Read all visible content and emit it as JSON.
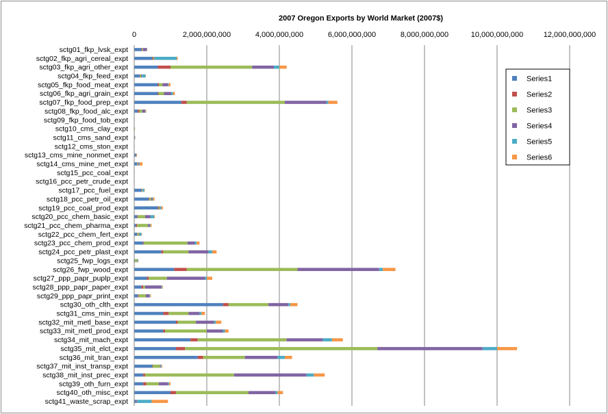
{
  "chart_data": {
    "type": "bar",
    "orientation": "horizontal",
    "stacked": true,
    "title": "2007 Oregon Exports by World Market (2007$)",
    "xlim": [
      0,
      12000000000
    ],
    "xticks": [
      0,
      2000000000,
      4000000000,
      6000000000,
      8000000000,
      10000000000,
      12000000000
    ],
    "xtick_labels": [
      "0",
      "2,000,000,000",
      "4,000,000,000",
      "6,000,000,000",
      "8,000,000,000",
      "10,000,000,000",
      "12,000,000,000"
    ],
    "grid": true,
    "legend_position": "right",
    "categories": [
      "sctg01_fkp_lvsk_expt",
      "sctg02_fkp_agri_cereal_expt",
      "sctg03_fkp_agri_other_expt",
      "sctg04_fkp_feed_expt",
      "sctg05_fkp_food_meat_expt",
      "sctg06_fkp_agri_grain_expt",
      "sctg07_fkp_food_prep_expt",
      "sctg08_fkp_food_alc_expt",
      "sctg09_fkp_food_tob_expt",
      "sctg10_cms_clay_expt",
      "sctg11_cms_sand_expt",
      "sctg12_cms_ston_expt",
      "sctg13_cms_mine_nonmet_expt",
      "sctg14_cms_mine_met_expt",
      "sctg15_pcc_coal_expt",
      "sctg16_pcc_petr_crude_expt",
      "sctg17_pcc_fuel_expt",
      "sctg18_pcc_petr_oil_expt",
      "sctg19_pcc_coal_prod_expt",
      "sctg20_pcc_chem_basic_expt",
      "sctg21_pcc_chem_pharma_expt",
      "sctg22_pcc_chem_fert_expt",
      "sctg23_pcc_chem_prod_expt",
      "sctg24_pcc_petr_plast_expt",
      "sctg25_fwp_logs_expt",
      "sctg26_fwp_wood_expt",
      "sctg27_ppp_papr_puplp_expt",
      "sctg28_ppp_papr_paper_expt",
      "sctg29_ppp_papr_print_expt",
      "sctg30_oth_clth_expt",
      "sctg31_cms_min_expt",
      "sctg32_mit_metl_base_expt",
      "sctg33_mit_metl_prod_expt",
      "sctg34_mit_mach_expt",
      "sctg35_mit_elct_expt",
      "sctg36_mit_tran_expt",
      "sctg37_mit_inst_transp_expt",
      "sctg38_mit_inst_prec_expt",
      "sctg39_oth_furn_expt",
      "sctg40_oth_misc_expt",
      "sctg41_waste_scrap_expt"
    ],
    "series": [
      {
        "name": "Series1",
        "color": "#4f81bd",
        "values": [
          200000000,
          500000000,
          650000000,
          150000000,
          650000000,
          650000000,
          1300000000,
          100000000,
          5000000,
          10000000,
          10000000,
          5000000,
          40000000,
          80000000,
          5000000,
          10000000,
          200000000,
          400000000,
          650000000,
          80000000,
          50000000,
          80000000,
          250000000,
          750000000,
          20000000,
          1100000000,
          350000000,
          200000000,
          100000000,
          2450000000,
          800000000,
          1150000000,
          800000000,
          1550000000,
          1150000000,
          1750000000,
          500000000,
          250000000,
          250000000,
          1000000000,
          50000000
        ]
      },
      {
        "name": "Series2",
        "color": "#c0504d",
        "values": [
          20000000,
          20000000,
          350000000,
          10000000,
          30000000,
          20000000,
          150000000,
          40000000,
          0,
          0,
          0,
          0,
          5000000,
          10000000,
          0,
          0,
          10000000,
          20000000,
          20000000,
          20000000,
          30000000,
          10000000,
          20000000,
          50000000,
          0,
          350000000,
          50000000,
          50000000,
          20000000,
          150000000,
          150000000,
          50000000,
          50000000,
          200000000,
          250000000,
          150000000,
          10000000,
          50000000,
          80000000,
          150000000,
          10000000
        ]
      },
      {
        "name": "Series3",
        "color": "#9bbb59",
        "values": [
          20000000,
          30000000,
          2250000000,
          30000000,
          100000000,
          150000000,
          2700000000,
          80000000,
          0,
          5000000,
          5000000,
          0,
          5000000,
          20000000,
          0,
          0,
          20000000,
          50000000,
          30000000,
          200000000,
          300000000,
          50000000,
          1200000000,
          700000000,
          60000000,
          3050000000,
          500000000,
          50000000,
          200000000,
          1100000000,
          550000000,
          500000000,
          1150000000,
          2450000000,
          5300000000,
          1150000000,
          200000000,
          2450000000,
          350000000,
          2000000000,
          0
        ]
      },
      {
        "name": "Series4",
        "color": "#8064a2",
        "values": [
          100000000,
          20000000,
          600000000,
          20000000,
          150000000,
          200000000,
          1150000000,
          80000000,
          0,
          0,
          5000000,
          0,
          10000000,
          20000000,
          0,
          0,
          10000000,
          30000000,
          20000000,
          150000000,
          50000000,
          10000000,
          200000000,
          550000000,
          5000000,
          2250000000,
          1050000000,
          450000000,
          100000000,
          550000000,
          300000000,
          500000000,
          450000000,
          1000000000,
          2900000000,
          900000000,
          20000000,
          2000000000,
          250000000,
          750000000,
          20000000
        ]
      },
      {
        "name": "Series5",
        "color": "#4bacc6",
        "values": [
          10000000,
          600000000,
          150000000,
          100000000,
          20000000,
          50000000,
          50000000,
          10000000,
          0,
          0,
          0,
          0,
          5000000,
          20000000,
          0,
          0,
          40000000,
          20000000,
          30000000,
          100000000,
          20000000,
          50000000,
          50000000,
          100000000,
          20000000,
          100000000,
          50000000,
          20000000,
          20000000,
          50000000,
          50000000,
          50000000,
          50000000,
          250000000,
          400000000,
          200000000,
          20000000,
          200000000,
          30000000,
          50000000,
          400000000
        ]
      },
      {
        "name": "Series6",
        "color": "#f79646",
        "values": [
          10000000,
          30000000,
          200000000,
          5000000,
          50000000,
          50000000,
          250000000,
          20000000,
          0,
          0,
          0,
          0,
          10000000,
          80000000,
          0,
          0,
          10000000,
          40000000,
          40000000,
          20000000,
          30000000,
          10000000,
          80000000,
          120000000,
          5000000,
          350000000,
          150000000,
          20000000,
          20000000,
          200000000,
          100000000,
          150000000,
          100000000,
          300000000,
          550000000,
          200000000,
          20000000,
          300000000,
          40000000,
          150000000,
          450000000
        ]
      }
    ]
  }
}
